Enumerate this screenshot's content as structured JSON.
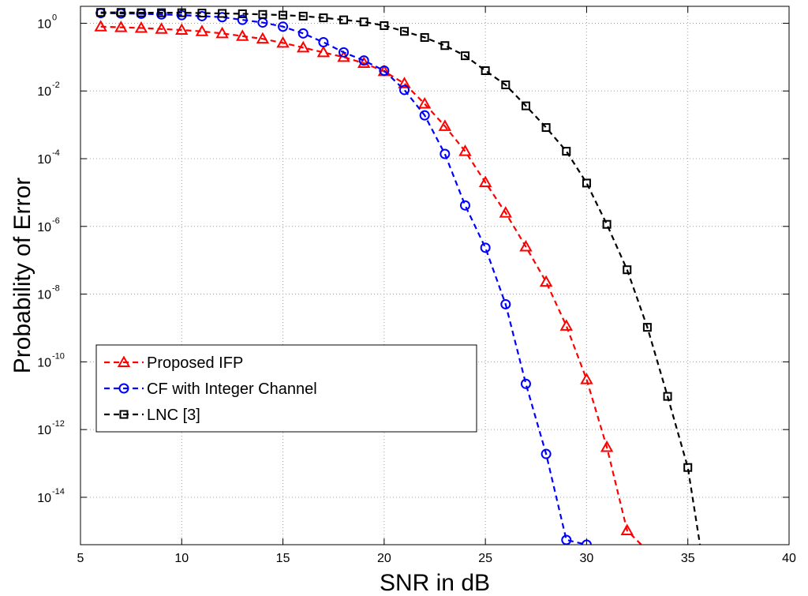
{
  "chart_data": {
    "type": "line",
    "title": "",
    "xlabel": "SNR in dB",
    "ylabel": "Probability of Error",
    "xlim": [
      5,
      40
    ],
    "ylim_log10": [
      -15.4,
      0.5
    ],
    "yscale": "log",
    "grid": true,
    "legend_position": "lower-left",
    "x_ticks": [
      "5",
      "10",
      "15",
      "20",
      "25",
      "30",
      "35",
      "40"
    ],
    "y_tick_base": "10",
    "y_tick_exponents": [
      "0",
      "-2",
      "-4",
      "-6",
      "-8",
      "-10",
      "-12",
      "-14"
    ],
    "series": [
      {
        "name": "Proposed IFP",
        "color": "#ff0000",
        "marker": "triangle",
        "x": [
          6,
          7,
          8,
          9,
          10,
          11,
          12,
          13,
          14,
          15,
          16,
          17,
          18,
          19,
          20,
          21,
          22,
          23,
          24,
          25,
          26,
          27,
          28,
          29,
          30,
          31,
          32
        ],
        "log10_y": [
          -0.1,
          -0.12,
          -0.14,
          -0.17,
          -0.2,
          -0.24,
          -0.3,
          -0.38,
          -0.46,
          -0.58,
          -0.72,
          -0.86,
          -1.0,
          -1.18,
          -1.42,
          -1.78,
          -2.38,
          -3.04,
          -3.78,
          -4.7,
          -5.6,
          -6.6,
          -7.64,
          -8.94,
          -10.52,
          -12.52,
          -14.98
        ],
        "x_tail": 32.7,
        "log10_y_tail": -15.4
      },
      {
        "name": "CF with Integer Channel",
        "color": "#0000ff",
        "marker": "circle",
        "x": [
          6,
          7,
          8,
          9,
          10,
          11,
          12,
          13,
          14,
          15,
          16,
          17,
          18,
          19,
          20,
          21,
          22,
          23,
          24,
          25,
          26,
          27,
          28,
          29,
          30
        ],
        "log10_y": [
          0.3,
          0.29,
          0.28,
          0.26,
          0.24,
          0.21,
          0.18,
          0.1,
          0.02,
          -0.1,
          -0.3,
          -0.56,
          -0.86,
          -1.1,
          -1.4,
          -1.97,
          -2.72,
          -3.86,
          -5.38,
          -6.63,
          -8.3,
          -10.65,
          -12.72,
          -15.26,
          -15.4
        ]
      },
      {
        "name": "LNC [3]",
        "color": "#000000",
        "marker": "square",
        "x": [
          6,
          7,
          8,
          9,
          10,
          11,
          12,
          13,
          14,
          15,
          16,
          17,
          18,
          19,
          20,
          21,
          22,
          23,
          24,
          25,
          26,
          27,
          28,
          29,
          30,
          31,
          32,
          33,
          34,
          35
        ],
        "log10_y": [
          0.32,
          0.32,
          0.31,
          0.31,
          0.31,
          0.3,
          0.29,
          0.28,
          0.26,
          0.24,
          0.21,
          0.16,
          0.1,
          0.04,
          -0.07,
          -0.24,
          -0.42,
          -0.66,
          -0.96,
          -1.4,
          -1.82,
          -2.44,
          -3.08,
          -3.78,
          -4.72,
          -5.94,
          -7.28,
          -8.98,
          -11.02,
          -13.12
        ],
        "x_tail": 35.6,
        "log10_y_tail": -15.4
      }
    ]
  }
}
